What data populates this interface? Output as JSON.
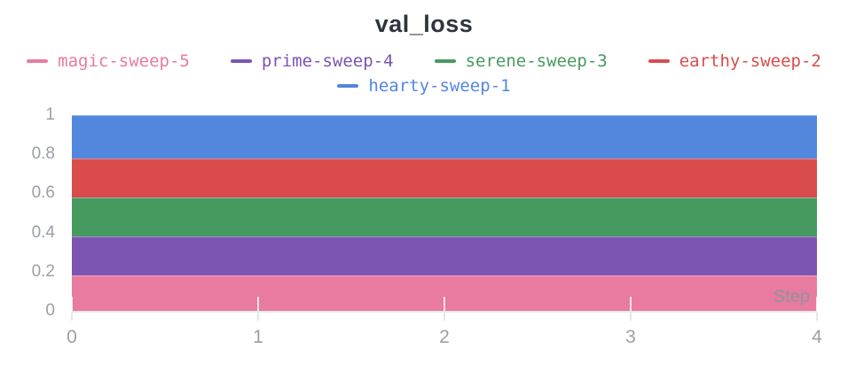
{
  "page": {
    "background": "#ffffff",
    "axis_label_color": "#9ba0a7",
    "title_color": "#2f353c"
  },
  "chart_data": {
    "type": "area",
    "title": "val_loss",
    "xlabel": "Step",
    "ylabel": "",
    "x_range": [
      0,
      4
    ],
    "y_range": [
      0,
      1
    ],
    "x_ticks": [
      0,
      1,
      2,
      3,
      4
    ],
    "y_ticks": [
      0,
      0.2,
      0.4,
      0.6,
      0.8,
      1
    ],
    "grid": "off",
    "legend_position": "top",
    "mode": "constant-lines-filled-to-zero-opaque",
    "series": [
      {
        "name": "magic-sweep-5",
        "color": "#E87B9F",
        "value": 0.18
      },
      {
        "name": "prime-sweep-4",
        "color": "#7D54B2",
        "value": 0.38
      },
      {
        "name": "serene-sweep-3",
        "color": "#479A5F",
        "value": 0.58
      },
      {
        "name": "earthy-sweep-2",
        "color": "#DA4C4C",
        "value": 0.78
      },
      {
        "name": "hearty-sweep-1",
        "color": "#5387DD",
        "value": 1.0
      }
    ]
  },
  "legend": {
    "rows": [
      [
        "magic-sweep-5",
        "prime-sweep-4",
        "serene-sweep-3",
        "earthy-sweep-2"
      ],
      [
        "hearty-sweep-1"
      ]
    ]
  }
}
